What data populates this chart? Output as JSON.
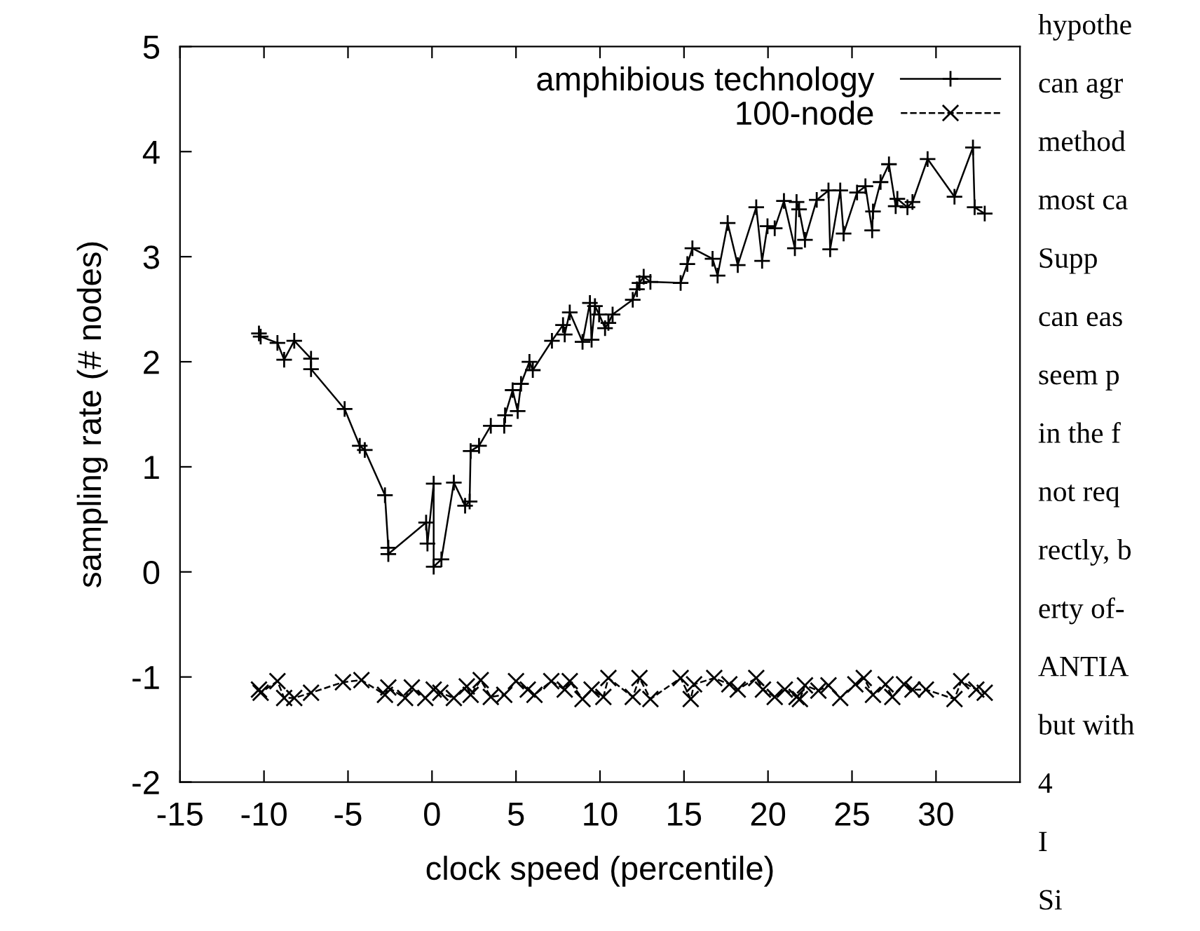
{
  "chart_data": {
    "type": "line",
    "xlabel": "clock speed (percentile)",
    "ylabel": "sampling rate (# nodes)",
    "xlim": [
      -15,
      35
    ],
    "xticks": [
      -15,
      -10,
      -5,
      0,
      5,
      10,
      15,
      20,
      25,
      30
    ],
    "ylim": [
      -2,
      5
    ],
    "yticks": [
      -2,
      -1,
      0,
      1,
      2,
      3,
      4,
      5
    ],
    "legend": "top right",
    "grid": false,
    "series": [
      {
        "name": "amphibious technology",
        "color": "#000000",
        "marker": "plus",
        "line_style": "solid",
        "x": [
          -10.3,
          -10.2,
          -9.2,
          -8.8,
          -8.2,
          -7.2,
          -7.2,
          -5.2,
          -4.3,
          -4.0,
          -2.8,
          -2.6,
          -2.6,
          -0.35,
          -0.27,
          0.1,
          0.1,
          0.56,
          1.3,
          1.97,
          2.24,
          2.3,
          2.8,
          3.5,
          4.3,
          4.35,
          4.8,
          5.1,
          5.3,
          5.8,
          6.0,
          7.14,
          7.8,
          7.9,
          8.2,
          8.96,
          9.4,
          9.5,
          9.7,
          9.95,
          10.3,
          10.5,
          10.75,
          11.95,
          12.2,
          12.35,
          12.6,
          13.0,
          14.8,
          15.2,
          15.5,
          16.7,
          17.0,
          17.6,
          18.2,
          19.3,
          19.65,
          19.97,
          20.4,
          20.95,
          21.6,
          21.7,
          21.85,
          22.2,
          22.9,
          23.6,
          23.7,
          24.3,
          24.5,
          25.3,
          25.8,
          26.2,
          26.25,
          26.7,
          27.2,
          27.6,
          27.7,
          28.3,
          28.6,
          29.5,
          31.1,
          32.2,
          32.3,
          32.9
        ],
        "values": [
          2.27,
          2.24,
          2.18,
          2.02,
          2.2,
          2.03,
          1.93,
          1.55,
          1.2,
          1.16,
          0.73,
          0.23,
          0.17,
          0.47,
          0.27,
          0.84,
          0.05,
          0.12,
          0.85,
          0.63,
          0.67,
          1.15,
          1.2,
          1.39,
          1.39,
          1.49,
          1.73,
          1.53,
          1.79,
          2.0,
          1.92,
          2.2,
          2.35,
          2.26,
          2.47,
          2.19,
          2.56,
          2.21,
          2.53,
          2.45,
          2.32,
          2.37,
          2.45,
          2.59,
          2.69,
          2.75,
          2.81,
          2.76,
          2.75,
          2.93,
          3.08,
          2.98,
          2.82,
          3.32,
          2.92,
          3.47,
          2.96,
          3.29,
          3.27,
          3.53,
          3.08,
          3.52,
          3.45,
          3.16,
          3.54,
          3.63,
          3.07,
          3.63,
          3.22,
          3.61,
          3.67,
          3.25,
          3.43,
          3.71,
          3.88,
          3.48,
          3.55,
          3.47,
          3.52,
          3.93,
          3.57,
          4.04,
          3.47,
          3.41
        ]
      },
      {
        "name": "100-node",
        "color": "#000000",
        "marker": "cross",
        "line_style": "dashed",
        "x": [
          -10.3,
          -10.2,
          -9.2,
          -8.8,
          -8.2,
          -7.2,
          -5.3,
          -4.2,
          -2.8,
          -2.6,
          -1.6,
          -1.2,
          -0.4,
          0.1,
          0.5,
          1.3,
          2.07,
          2.3,
          2.9,
          3.5,
          4.3,
          5.0,
          5.7,
          6.1,
          7.1,
          7.9,
          8.2,
          8.96,
          9.5,
          10.2,
          10.5,
          11.95,
          12.35,
          13.0,
          14.8,
          15.4,
          15.6,
          16.8,
          17.7,
          18.2,
          19.3,
          19.7,
          20.4,
          21.0,
          21.7,
          21.9,
          22.2,
          23.0,
          23.6,
          24.3,
          25.2,
          25.7,
          26.25,
          27.0,
          27.4,
          28.1,
          28.6,
          29.4,
          31.1,
          31.5,
          32.4,
          32.9
        ],
        "values": [
          -1.12,
          -1.15,
          -1.04,
          -1.2,
          -1.2,
          -1.15,
          -1.05,
          -1.03,
          -1.17,
          -1.1,
          -1.2,
          -1.1,
          -1.2,
          -1.12,
          -1.15,
          -1.2,
          -1.09,
          -1.17,
          -1.03,
          -1.19,
          -1.17,
          -1.04,
          -1.12,
          -1.17,
          -1.04,
          -1.12,
          -1.04,
          -1.21,
          -1.12,
          -1.19,
          -1.01,
          -1.19,
          -1.01,
          -1.21,
          -1.01,
          -1.21,
          -1.07,
          -1.01,
          -1.07,
          -1.12,
          -1.01,
          -1.12,
          -1.19,
          -1.12,
          -1.19,
          -1.21,
          -1.08,
          -1.13,
          -1.08,
          -1.2,
          -1.07,
          -1.01,
          -1.17,
          -1.07,
          -1.19,
          -1.07,
          -1.12,
          -1.12,
          -1.21,
          -1.04,
          -1.12,
          -1.15
        ]
      }
    ],
    "annotations": [
      "hypothe",
      "can agr",
      "method",
      "most ca",
      "Supp",
      "can eas",
      "seem p",
      "in the f",
      "not req",
      "rectly, b",
      "erty of-",
      "ANTIA",
      "but with",
      "4",
      "I",
      "Si"
    ]
  }
}
